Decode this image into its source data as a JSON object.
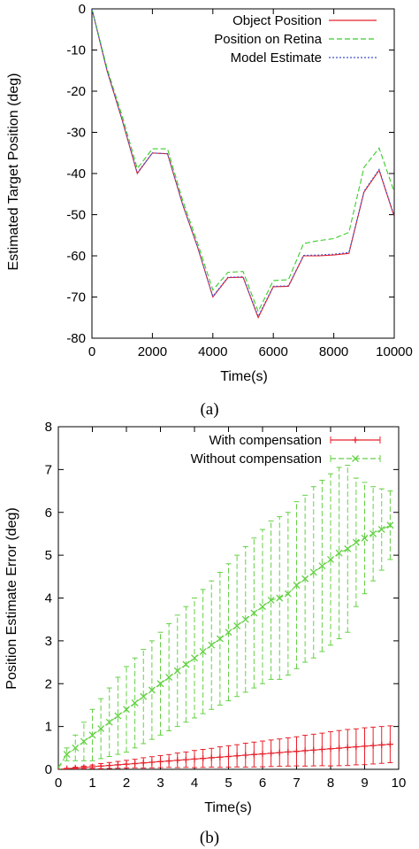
{
  "chart_data": [
    {
      "type": "line",
      "caption": "(a)",
      "xlabel": "Time(s)",
      "ylabel": "Estimated Target Position (deg)",
      "xlim": [
        0,
        10000
      ],
      "ylim": [
        -80,
        0
      ],
      "xticks": [
        0,
        2000,
        4000,
        6000,
        8000,
        10000
      ],
      "yticks": [
        0,
        -10,
        -20,
        -30,
        -40,
        -50,
        -60,
        -70,
        -80
      ],
      "grid": false,
      "legend_position": "top-right",
      "x": [
        0,
        500,
        1000,
        1500,
        2000,
        2500,
        3000,
        3500,
        4000,
        4500,
        5000,
        5500,
        6000,
        6500,
        7000,
        7500,
        8000,
        8500,
        9000,
        9500,
        10000
      ],
      "series": [
        {
          "name": "Object Position",
          "color": "#e8202a",
          "dash": "solid",
          "values": [
            0,
            -15,
            -27,
            -40,
            -35,
            -35.2,
            -47.5,
            -58,
            -70,
            -65.3,
            -65.2,
            -75,
            -67.5,
            -67.4,
            -60,
            -60,
            -59.8,
            -59.4,
            -44.5,
            -39.2,
            -50.5
          ]
        },
        {
          "name": "Position on Retina",
          "color": "#3ccc2c",
          "dash": "dashed",
          "values": [
            0,
            -14.5,
            -26,
            -38.8,
            -34,
            -34,
            -46.5,
            -57,
            -68.3,
            -64,
            -63.8,
            -73.5,
            -66,
            -65.8,
            -57,
            -56.3,
            -55.8,
            -54.3,
            -38.5,
            -33.8,
            -44.5
          ]
        },
        {
          "name": "Model Estimate",
          "color": "#3f4fc9",
          "dash": "dotted",
          "values": [
            0,
            -15,
            -27,
            -39.8,
            -35,
            -35.2,
            -47.5,
            -58,
            -69.8,
            -65.2,
            -65.1,
            -74.7,
            -67.4,
            -67.3,
            -59.9,
            -59.8,
            -59.6,
            -59.2,
            -44.3,
            -39,
            -50.3
          ]
        }
      ]
    },
    {
      "type": "line",
      "caption": "(b)",
      "xlabel": "Time(s)",
      "ylabel": "Position Estimate Error (deg)",
      "xlim": [
        0,
        10
      ],
      "ylim": [
        0,
        8
      ],
      "xticks": [
        0,
        1,
        2,
        3,
        4,
        5,
        6,
        7,
        8,
        9,
        10
      ],
      "yticks": [
        0,
        1,
        2,
        3,
        4,
        5,
        6,
        7,
        8
      ],
      "grid": false,
      "legend_position": "top-right",
      "error_bars": true,
      "series": [
        {
          "name": "With compensation",
          "color": "#e8202a",
          "marker": "plus",
          "dash": "solid",
          "x": [
            0,
            0.25,
            0.5,
            0.75,
            1.0,
            1.25,
            1.5,
            1.75,
            2.0,
            2.25,
            2.5,
            2.75,
            3.0,
            3.25,
            3.5,
            3.75,
            4.0,
            4.25,
            4.5,
            4.75,
            5.0,
            5.25,
            5.5,
            5.75,
            6.0,
            6.25,
            6.5,
            6.75,
            7.0,
            7.25,
            7.5,
            7.75,
            8.0,
            8.25,
            8.5,
            8.75,
            9.0,
            9.25,
            9.5,
            9.75
          ],
          "values": [
            0,
            0.015,
            0.03,
            0.045,
            0.06,
            0.075,
            0.09,
            0.105,
            0.12,
            0.135,
            0.15,
            0.165,
            0.18,
            0.195,
            0.21,
            0.225,
            0.24,
            0.255,
            0.27,
            0.285,
            0.3,
            0.315,
            0.33,
            0.345,
            0.36,
            0.375,
            0.39,
            0.405,
            0.42,
            0.435,
            0.45,
            0.465,
            0.48,
            0.495,
            0.51,
            0.525,
            0.54,
            0.555,
            0.57,
            0.585
          ],
          "errors": [
            0,
            0.01,
            0.02,
            0.03,
            0.04,
            0.06,
            0.07,
            0.08,
            0.09,
            0.1,
            0.12,
            0.13,
            0.14,
            0.15,
            0.17,
            0.18,
            0.2,
            0.21,
            0.22,
            0.24,
            0.25,
            0.26,
            0.28,
            0.29,
            0.3,
            0.31,
            0.32,
            0.33,
            0.34,
            0.36,
            0.37,
            0.38,
            0.4,
            0.41,
            0.42,
            0.42,
            0.43,
            0.43,
            0.43,
            0.43
          ]
        },
        {
          "name": "Without compensation",
          "color": "#63d143",
          "marker": "x",
          "dash": "dashed",
          "x": [
            0,
            0.25,
            0.5,
            0.75,
            1.0,
            1.25,
            1.5,
            1.75,
            2.0,
            2.25,
            2.5,
            2.75,
            3.0,
            3.25,
            3.5,
            3.75,
            4.0,
            4.25,
            4.5,
            4.75,
            5.0,
            5.25,
            5.5,
            5.75,
            6.0,
            6.25,
            6.5,
            6.75,
            7.0,
            7.25,
            7.5,
            7.75,
            8.0,
            8.25,
            8.5,
            8.75,
            9.0,
            9.25,
            9.5,
            9.75
          ],
          "values": [
            0.05,
            0.35,
            0.5,
            0.65,
            0.8,
            0.95,
            1.1,
            1.25,
            1.4,
            1.55,
            1.7,
            1.85,
            2.0,
            2.15,
            2.3,
            2.45,
            2.6,
            2.75,
            2.9,
            3.05,
            3.2,
            3.35,
            3.5,
            3.65,
            3.8,
            3.95,
            4.0,
            4.1,
            4.3,
            4.45,
            4.6,
            4.75,
            4.9,
            5.05,
            5.15,
            5.3,
            5.4,
            5.5,
            5.6,
            5.7
          ],
          "errors": [
            0,
            0.15,
            0.3,
            0.45,
            0.6,
            0.7,
            0.8,
            0.9,
            1.0,
            1.05,
            1.1,
            1.15,
            1.2,
            1.25,
            1.3,
            1.35,
            1.4,
            1.45,
            1.5,
            1.55,
            1.6,
            1.65,
            1.7,
            1.75,
            1.8,
            1.85,
            1.9,
            1.9,
            1.95,
            1.95,
            2.0,
            2.0,
            2.0,
            2.0,
            1.95,
            1.5,
            1.3,
            1.1,
            0.95,
            0.8
          ]
        }
      ]
    }
  ]
}
